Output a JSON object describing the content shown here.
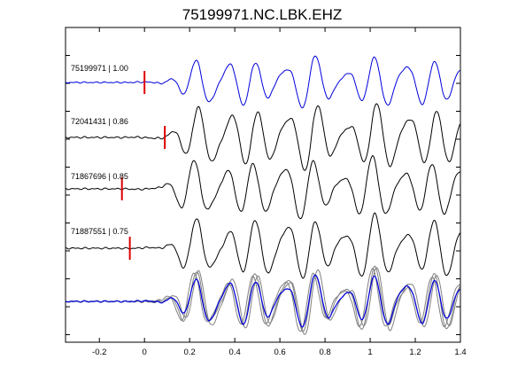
{
  "chart_data": {
    "type": "line",
    "title": "75199971.NC.LBK.EHZ",
    "xlabel": "",
    "ylabel": "",
    "xlim": [
      -0.35,
      1.4
    ],
    "x_ticks": [
      "-0.2",
      "0",
      "0.2",
      "0.4",
      "0.6",
      "0.8",
      "1",
      "1.2",
      "1.4"
    ],
    "x_tick_values": [
      -0.2,
      0,
      0.2,
      0.4,
      0.6,
      0.8,
      1.0,
      1.2,
      1.4
    ],
    "y_ticks_labeled": false,
    "grid": false,
    "colors": {
      "master": "#0000dd",
      "match": "#000000",
      "overlay": "#808080",
      "pick": "#dd0000"
    },
    "traces": [
      {
        "event_id": "75199971",
        "cc": "1.00",
        "label": "75199971 | 1.00",
        "pick_time": 0.0,
        "color": "master"
      },
      {
        "event_id": "72041431",
        "cc": "0.86",
        "label": "72041431 | 0.86",
        "pick_time": 0.09,
        "color": "match"
      },
      {
        "event_id": "71867696",
        "cc": "0.85",
        "label": "71867696 | 0.85",
        "pick_time": -0.1,
        "color": "match"
      },
      {
        "event_id": "71887551",
        "cc": "0.75",
        "label": "71887551 | 0.75",
        "pick_time": -0.065,
        "color": "match"
      }
    ],
    "stack": {
      "description_visible": false,
      "members": [
        "72041431",
        "71867696",
        "71887551",
        "75199971"
      ]
    }
  }
}
